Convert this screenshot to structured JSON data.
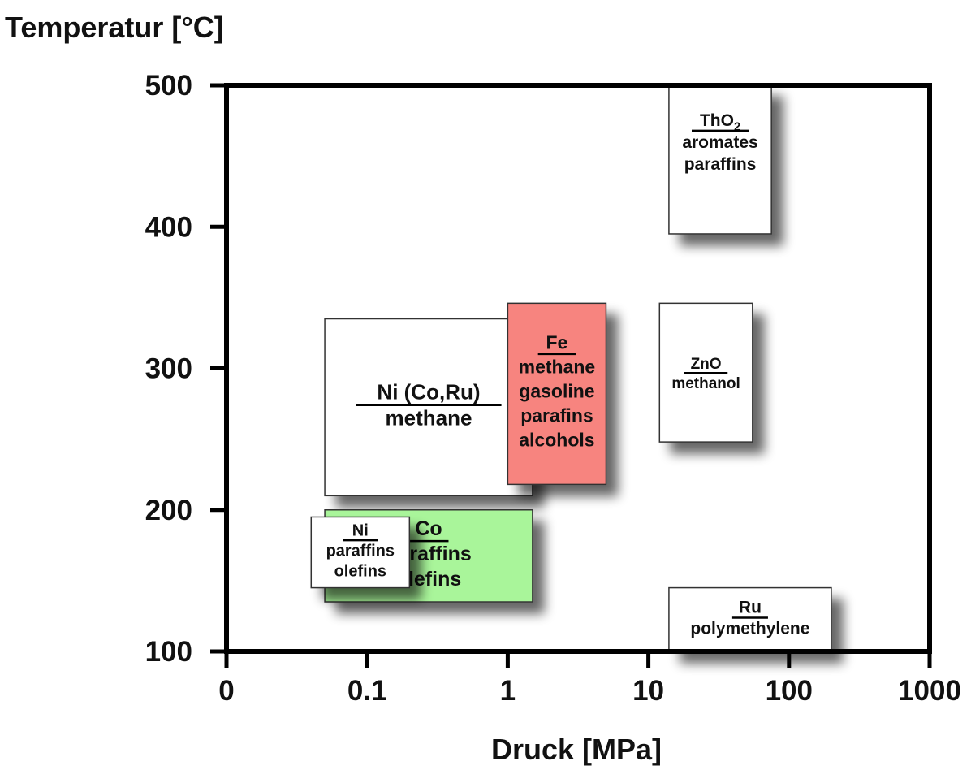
{
  "chart_data": {
    "type": "table",
    "title": "Temperatur [°C]",
    "xlabel": "Druck [MPa]",
    "ylabel": "Temperatur [°C]",
    "x_scale": "log",
    "x_ticks": [
      "0",
      "0.1",
      "1",
      "10",
      "100",
      "1000"
    ],
    "y_ticks": [
      "500",
      "400",
      "300",
      "200",
      "100"
    ],
    "ylim": [
      100,
      500
    ],
    "grid": false,
    "regions": [
      {
        "catalyst": "Ni (Co,Ru)",
        "products": [
          "methane"
        ],
        "pressure_mpa": [
          0.05,
          1.5
        ],
        "temperature_c": [
          210,
          335
        ],
        "color": "#ffffff"
      },
      {
        "catalyst": "Co",
        "products": [
          "paraffins",
          "olefins"
        ],
        "pressure_mpa": [
          0.05,
          1.5
        ],
        "temperature_c": [
          135,
          200
        ],
        "color": "#a9f59a"
      },
      {
        "catalyst": "Ni",
        "products": [
          "paraffins",
          "olefins"
        ],
        "pressure_mpa": [
          0.04,
          0.2
        ],
        "temperature_c": [
          145,
          195
        ],
        "color": "#ffffff"
      },
      {
        "catalyst": "Fe",
        "products": [
          "methane",
          "gasoline",
          "parafins",
          "alcohols"
        ],
        "pressure_mpa": [
          1,
          5
        ],
        "temperature_c": [
          218,
          346
        ],
        "color": "#f7847f"
      },
      {
        "catalyst": "ZnO",
        "products": [
          "methanol"
        ],
        "pressure_mpa": [
          12,
          55
        ],
        "temperature_c": [
          248,
          346
        ],
        "color": "#ffffff"
      },
      {
        "catalyst": "ThO",
        "catalyst_subscript": "2",
        "products": [
          "aromates",
          "paraffins"
        ],
        "pressure_mpa": [
          14,
          75
        ],
        "temperature_c": [
          395,
          500
        ],
        "color": "#ffffff"
      },
      {
        "catalyst": "Ru",
        "products": [
          "polymethylene"
        ],
        "pressure_mpa": [
          14,
          200
        ],
        "temperature_c": [
          100,
          145
        ],
        "color": "#ffffff"
      }
    ]
  }
}
